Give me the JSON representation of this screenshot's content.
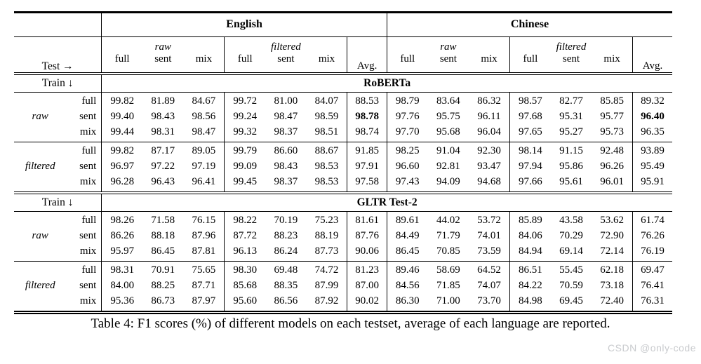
{
  "table": {
    "language_headers": [
      "English",
      "Chinese"
    ],
    "test_label": "Test →",
    "train_label": "Train ↓",
    "group_labels": [
      "raw",
      "filtered"
    ],
    "sub_columns": [
      "full",
      "sent",
      "mix"
    ],
    "avg_label": "Avg.",
    "sections": [
      {
        "model": "RoBERTa",
        "blocks": [
          {
            "train": "raw",
            "rows": [
              {
                "label": "full",
                "values": [
                  "99.82",
                  "81.89",
                  "84.67",
                  "99.72",
                  "81.00",
                  "84.07",
                  "88.53",
                  "98.79",
                  "83.64",
                  "86.32",
                  "98.57",
                  "82.77",
                  "85.85",
                  "89.32"
                ],
                "bold": []
              },
              {
                "label": "sent",
                "values": [
                  "99.40",
                  "98.43",
                  "98.56",
                  "99.24",
                  "98.47",
                  "98.59",
                  "98.78",
                  "97.76",
                  "95.75",
                  "96.11",
                  "97.68",
                  "95.31",
                  "95.77",
                  "96.40"
                ],
                "bold": [
                  6,
                  13
                ]
              },
              {
                "label": "mix",
                "values": [
                  "99.44",
                  "98.31",
                  "98.47",
                  "99.32",
                  "98.37",
                  "98.51",
                  "98.74",
                  "97.70",
                  "95.68",
                  "96.04",
                  "97.65",
                  "95.27",
                  "95.73",
                  "96.35"
                ],
                "bold": []
              }
            ]
          },
          {
            "train": "filtered",
            "rows": [
              {
                "label": "full",
                "values": [
                  "99.82",
                  "87.17",
                  "89.05",
                  "99.79",
                  "86.60",
                  "88.67",
                  "91.85",
                  "98.25",
                  "91.04",
                  "92.30",
                  "98.14",
                  "91.15",
                  "92.48",
                  "93.89"
                ],
                "bold": []
              },
              {
                "label": "sent",
                "values": [
                  "96.97",
                  "97.22",
                  "97.19",
                  "99.09",
                  "98.43",
                  "98.53",
                  "97.91",
                  "96.60",
                  "92.81",
                  "93.47",
                  "97.94",
                  "95.86",
                  "96.26",
                  "95.49"
                ],
                "bold": []
              },
              {
                "label": "mix",
                "values": [
                  "96.28",
                  "96.43",
                  "96.41",
                  "99.45",
                  "98.37",
                  "98.53",
                  "97.58",
                  "97.43",
                  "94.09",
                  "94.68",
                  "97.66",
                  "95.61",
                  "96.01",
                  "95.91"
                ],
                "bold": []
              }
            ]
          }
        ]
      },
      {
        "model": "GLTR Test-2",
        "blocks": [
          {
            "train": "raw",
            "rows": [
              {
                "label": "full",
                "values": [
                  "98.26",
                  "71.58",
                  "76.15",
                  "98.22",
                  "70.19",
                  "75.23",
                  "81.61",
                  "89.61",
                  "44.02",
                  "53.72",
                  "85.89",
                  "43.58",
                  "53.62",
                  "61.74"
                ],
                "bold": []
              },
              {
                "label": "sent",
                "values": [
                  "86.26",
                  "88.18",
                  "87.96",
                  "87.72",
                  "88.23",
                  "88.19",
                  "87.76",
                  "84.49",
                  "71.79",
                  "74.01",
                  "84.06",
                  "70.29",
                  "72.90",
                  "76.26"
                ],
                "bold": []
              },
              {
                "label": "mix",
                "values": [
                  "95.97",
                  "86.45",
                  "87.81",
                  "96.13",
                  "86.24",
                  "87.73",
                  "90.06",
                  "86.45",
                  "70.85",
                  "73.59",
                  "84.94",
                  "69.14",
                  "72.14",
                  "76.19"
                ],
                "bold": []
              }
            ]
          },
          {
            "train": "filtered",
            "rows": [
              {
                "label": "full",
                "values": [
                  "98.31",
                  "70.91",
                  "75.65",
                  "98.30",
                  "69.48",
                  "74.72",
                  "81.23",
                  "89.46",
                  "58.69",
                  "64.52",
                  "86.51",
                  "55.45",
                  "62.18",
                  "69.47"
                ],
                "bold": []
              },
              {
                "label": "sent",
                "values": [
                  "84.00",
                  "88.25",
                  "87.71",
                  "85.68",
                  "88.35",
                  "87.99",
                  "87.00",
                  "84.56",
                  "71.85",
                  "74.07",
                  "84.22",
                  "70.59",
                  "73.18",
                  "76.41"
                ],
                "bold": []
              },
              {
                "label": "mix",
                "values": [
                  "95.36",
                  "86.73",
                  "87.97",
                  "95.60",
                  "86.56",
                  "87.92",
                  "90.02",
                  "86.30",
                  "71.00",
                  "73.70",
                  "84.98",
                  "69.45",
                  "72.40",
                  "76.31"
                ],
                "bold": []
              }
            ]
          }
        ]
      }
    ]
  },
  "caption": {
    "text": "Table 4: F1 scores (%) of different models on each testset, average of each language are reported."
  },
  "watermark": {
    "text": "CSDN @only-code",
    "color": "#c9cbce"
  }
}
